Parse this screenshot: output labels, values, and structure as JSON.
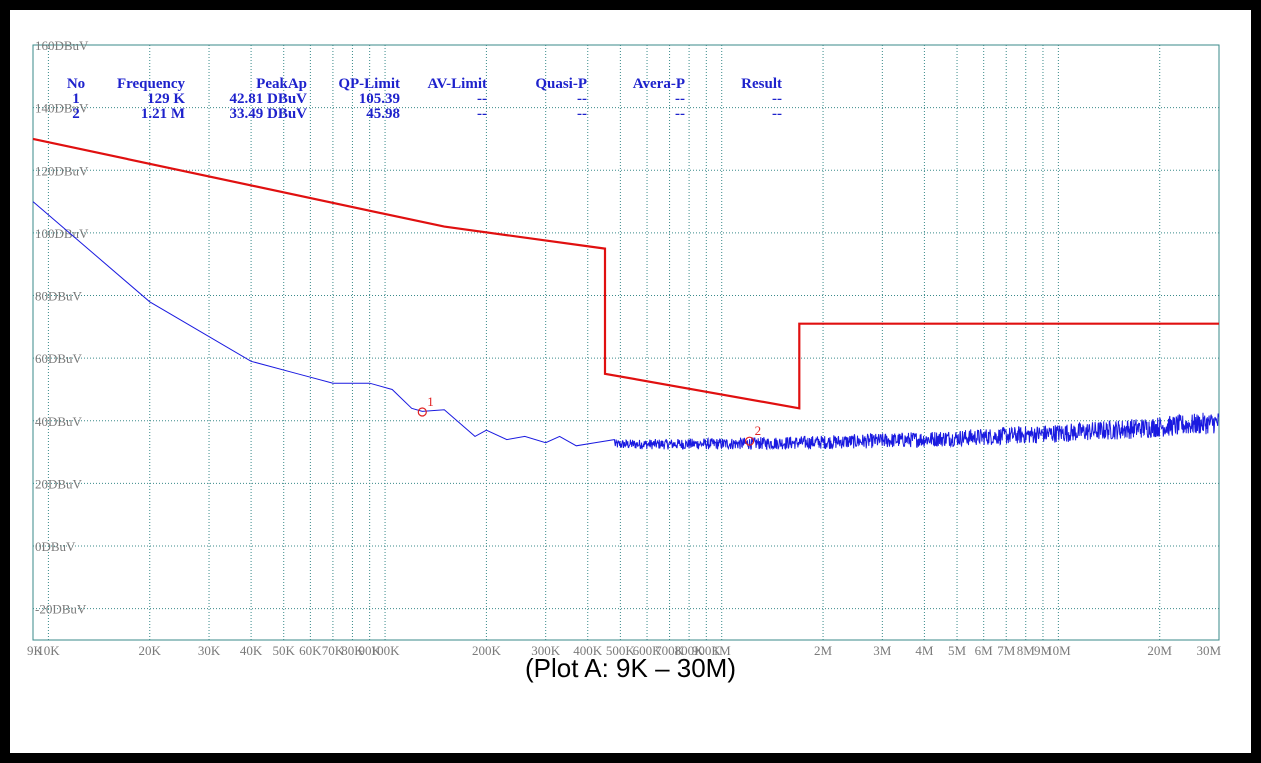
{
  "caption": "(Plot A: 9K – 30M)",
  "colors": {
    "limit": "#e01010",
    "trace": "#1a1ae0",
    "grid": "#3a8a8a",
    "table_text": "#1e22cc",
    "marker": "#e02020"
  },
  "table": {
    "headers": [
      "No",
      "Frequency",
      "PeakAp",
      "QP-Limit",
      "AV-Limit",
      "Quasi-P",
      "Avera-P",
      "Result"
    ],
    "rows": [
      [
        "1",
        "129 K",
        "42.81 DBuV",
        "105.39",
        "--",
        "--",
        "--",
        "--"
      ],
      [
        "2",
        "1.21 M",
        "33.49 DBuV",
        "45.98",
        "--",
        "--",
        "--",
        "--"
      ]
    ]
  },
  "chart_data": {
    "type": "line",
    "x_scale": "log",
    "xlim": [
      9000,
      30000000
    ],
    "ylim": [
      -30,
      160
    ],
    "grid": true,
    "y_ticks": [
      {
        "value": 160,
        "label": "160DBuV"
      },
      {
        "value": 140,
        "label": "140DBuV"
      },
      {
        "value": 120,
        "label": "120DBuV"
      },
      {
        "value": 100,
        "label": "100DBuV"
      },
      {
        "value": 80,
        "label": "80DBuV"
      },
      {
        "value": 60,
        "label": "60DBuV"
      },
      {
        "value": 40,
        "label": "40DBuV"
      },
      {
        "value": 20,
        "label": "20DBuV"
      },
      {
        "value": 0,
        "label": "0DBuV"
      },
      {
        "value": -20,
        "label": "-20DBuV"
      }
    ],
    "x_ticks": [
      {
        "value": 9000,
        "label": "9K"
      },
      {
        "value": 10000,
        "label": "10K"
      },
      {
        "value": 20000,
        "label": "20K"
      },
      {
        "value": 30000,
        "label": "30K"
      },
      {
        "value": 40000,
        "label": "40K"
      },
      {
        "value": 50000,
        "label": "50K"
      },
      {
        "value": 60000,
        "label": "60K"
      },
      {
        "value": 70000,
        "label": "70K"
      },
      {
        "value": 80000,
        "label": "80K"
      },
      {
        "value": 90000,
        "label": "90K"
      },
      {
        "value": 100000,
        "label": "100K"
      },
      {
        "value": 200000,
        "label": "200K"
      },
      {
        "value": 300000,
        "label": "300K"
      },
      {
        "value": 400000,
        "label": "400K"
      },
      {
        "value": 500000,
        "label": "500K"
      },
      {
        "value": 600000,
        "label": "600K"
      },
      {
        "value": 700000,
        "label": "700K"
      },
      {
        "value": 800000,
        "label": "800K"
      },
      {
        "value": 900000,
        "label": "900K"
      },
      {
        "value": 1000000,
        "label": "1M"
      },
      {
        "value": 2000000,
        "label": "2M"
      },
      {
        "value": 3000000,
        "label": "3M"
      },
      {
        "value": 4000000,
        "label": "4M"
      },
      {
        "value": 5000000,
        "label": "5M"
      },
      {
        "value": 6000000,
        "label": "6M"
      },
      {
        "value": 7000000,
        "label": "7M"
      },
      {
        "value": 8000000,
        "label": "8M"
      },
      {
        "value": 9000000,
        "label": "9M"
      },
      {
        "value": 10000000,
        "label": "10M"
      },
      {
        "value": 20000000,
        "label": "20M"
      },
      {
        "value": 30000000,
        "label": "30M"
      }
    ],
    "series": [
      {
        "role": "limit",
        "points": [
          [
            9000,
            130
          ],
          [
            150000,
            102
          ],
          [
            450000,
            95
          ],
          [
            450000,
            55
          ],
          [
            1700000,
            44
          ],
          [
            1700000,
            71
          ],
          [
            30000000,
            71
          ]
        ]
      },
      {
        "role": "measured",
        "points": [
          [
            9000,
            110
          ],
          [
            20000,
            78
          ],
          [
            40000,
            59
          ],
          [
            55000,
            55
          ],
          [
            70000,
            52
          ],
          [
            90000,
            52
          ],
          [
            105000,
            50
          ],
          [
            120000,
            44
          ],
          [
            129000,
            43
          ],
          [
            150000,
            43.5
          ],
          [
            185000,
            35
          ],
          [
            200000,
            37
          ],
          [
            230000,
            34
          ],
          [
            260000,
            35
          ],
          [
            300000,
            33
          ],
          [
            330000,
            35
          ],
          [
            370000,
            32
          ],
          [
            420000,
            33
          ],
          [
            480000,
            34
          ]
        ],
        "noise": {
          "from": 480000,
          "to": 30000000,
          "start_level": 32.5,
          "end_level": 39.5,
          "amplitude": 2.5
        }
      }
    ],
    "markers": [
      {
        "label": "1",
        "x": 129000,
        "y": 42.81
      },
      {
        "label": "2",
        "x": 1210000,
        "y": 33.49
      }
    ]
  }
}
